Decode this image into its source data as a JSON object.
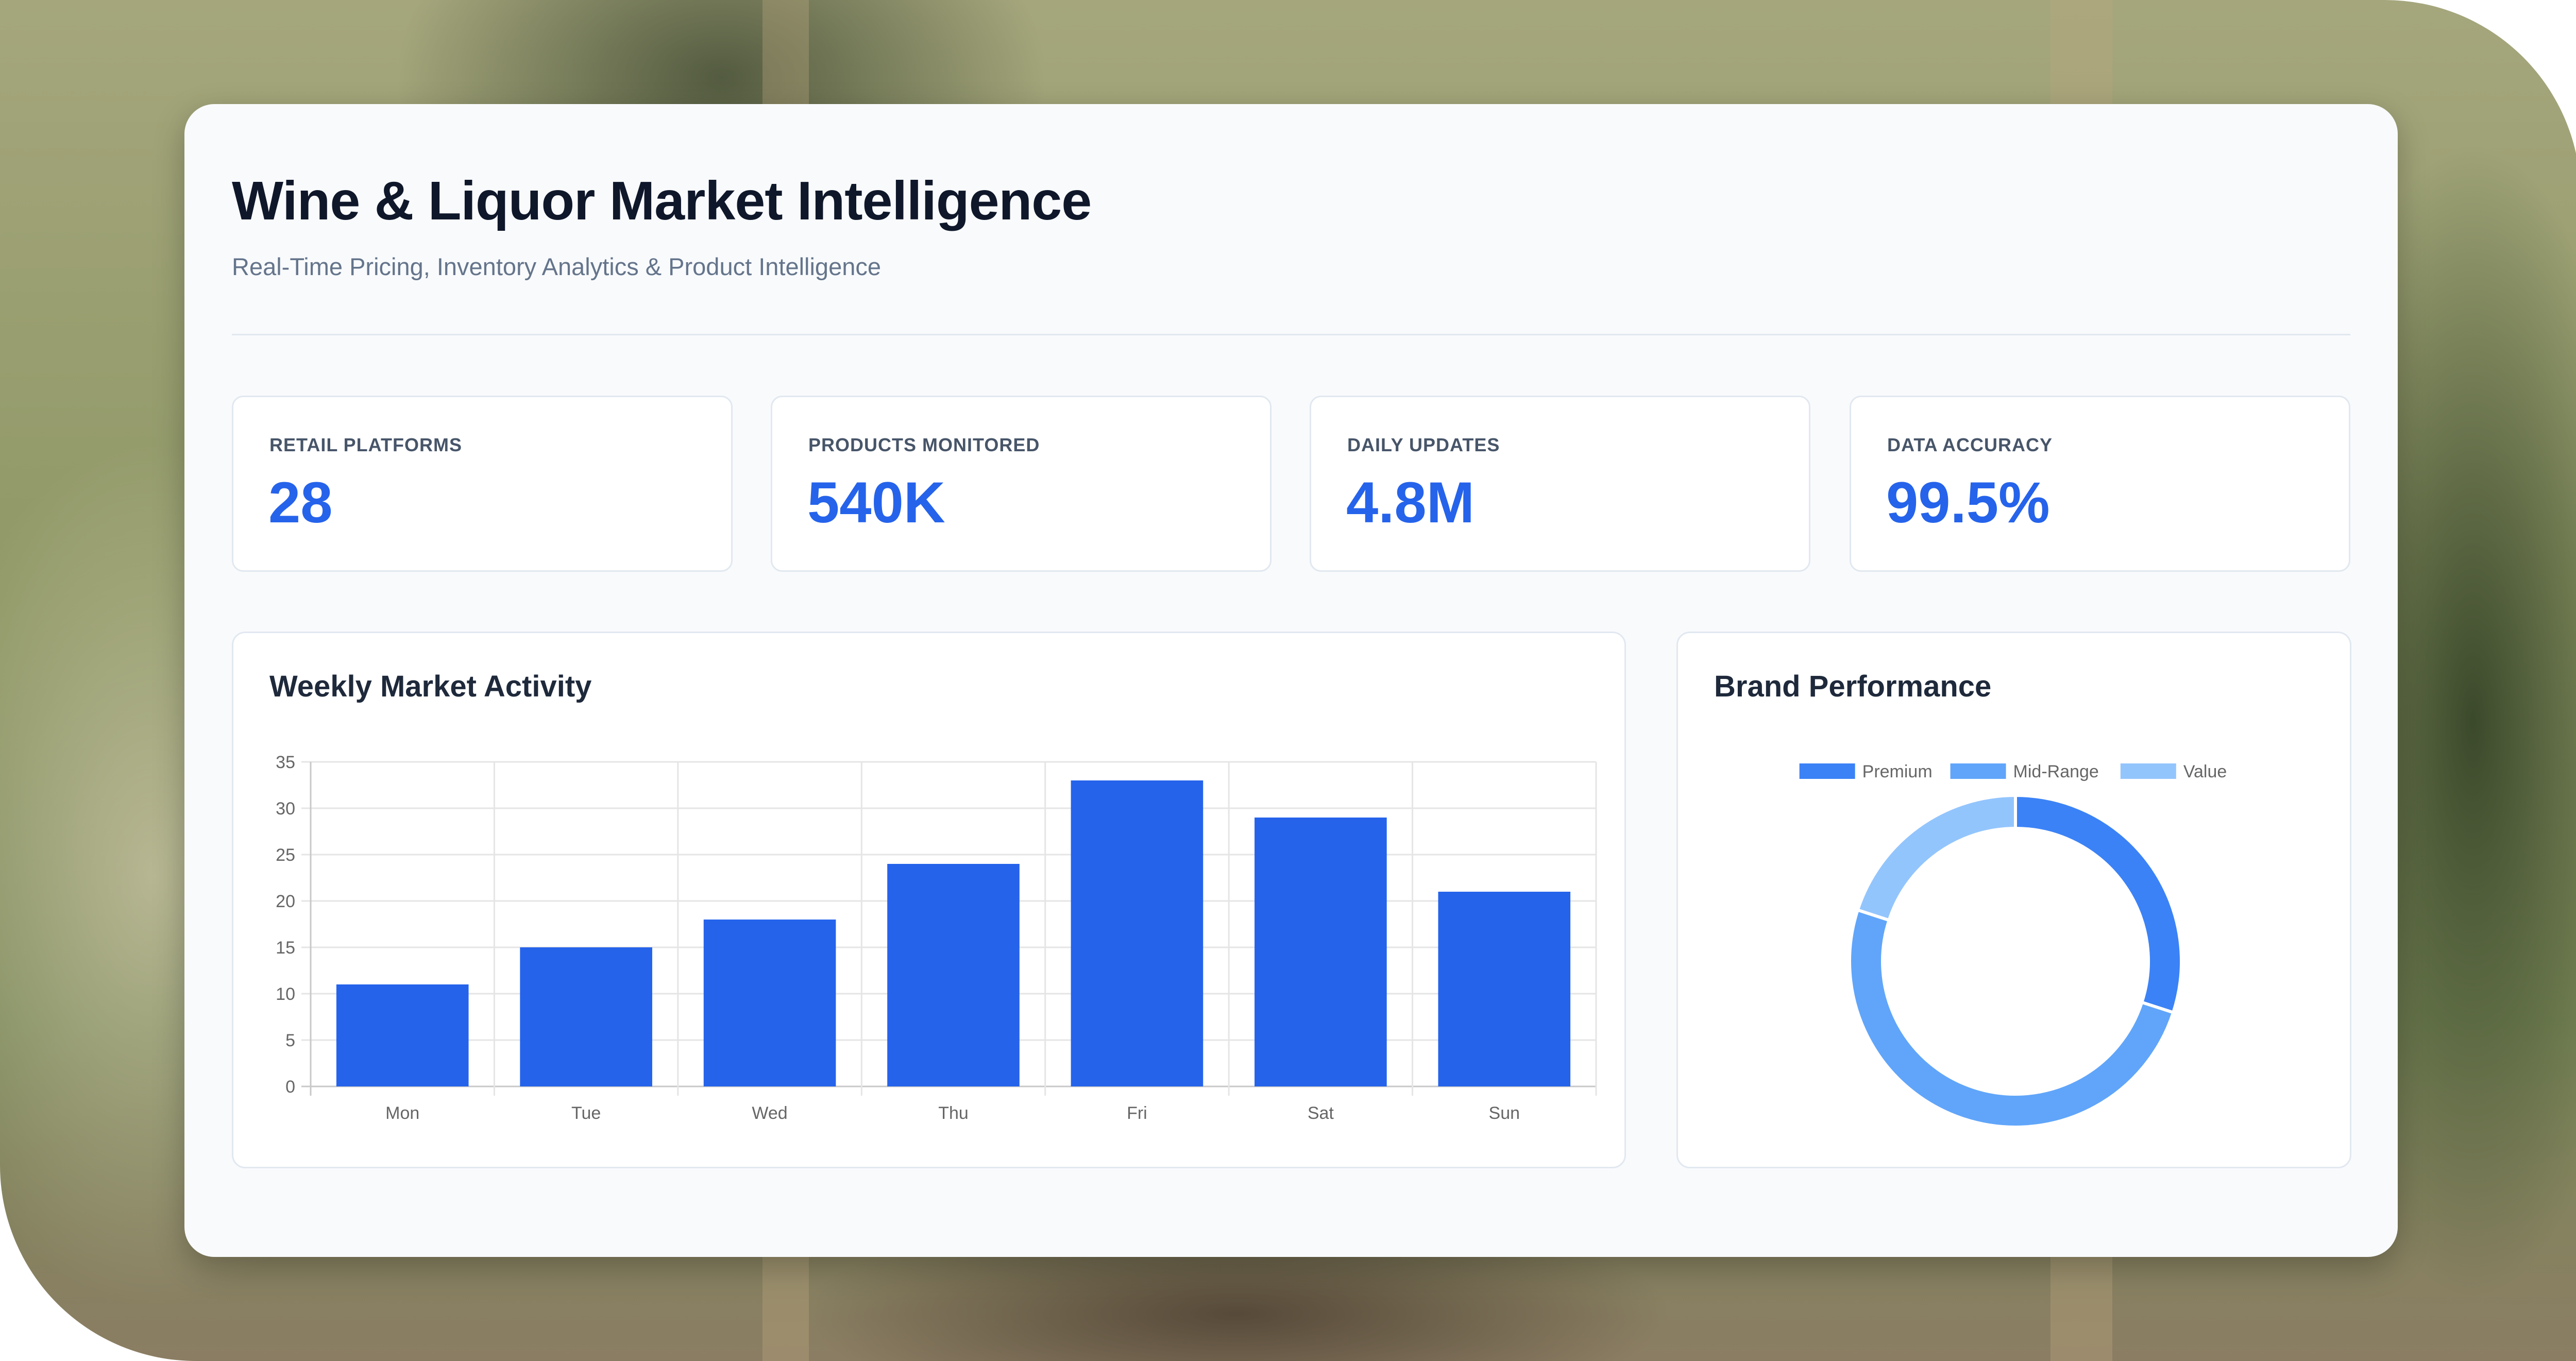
{
  "header": {
    "title": "Wine & Liquor Market Intelligence",
    "subtitle": "Real-Time Pricing, Inventory Analytics & Product Intelligence"
  },
  "stats": [
    {
      "label": "RETAIL PLATFORMS",
      "value": "28"
    },
    {
      "label": "PRODUCTS MONITORED",
      "value": "540K"
    },
    {
      "label": "DAILY UPDATES",
      "value": "4.8M"
    },
    {
      "label": "DATA ACCURACY",
      "value": "99.5%"
    }
  ],
  "colors": {
    "accent": "#2563eb",
    "premium": "#3b82f6",
    "mid_range": "#60a5fa",
    "value": "#93c5fd"
  },
  "charts": {
    "weekly": {
      "title": "Weekly Market Activity"
    },
    "brand": {
      "title": "Brand Performance"
    }
  },
  "chart_data": [
    {
      "type": "bar",
      "title": "Weekly Market Activity",
      "categories": [
        "Mon",
        "Tue",
        "Wed",
        "Thu",
        "Fri",
        "Sat",
        "Sun"
      ],
      "values": [
        11,
        15,
        18,
        24,
        33,
        29,
        21
      ],
      "ylim": [
        0,
        35
      ],
      "yticks": [
        0,
        5,
        10,
        15,
        20,
        25,
        30,
        35
      ],
      "grid": true,
      "legend": "none"
    },
    {
      "type": "pie",
      "style": "doughnut",
      "title": "Brand Performance",
      "labels": [
        "Premium",
        "Mid-Range",
        "Value"
      ],
      "values": [
        30,
        50,
        20
      ],
      "colors": [
        "#3b82f6",
        "#60a5fa",
        "#93c5fd"
      ],
      "legend": "top"
    }
  ]
}
